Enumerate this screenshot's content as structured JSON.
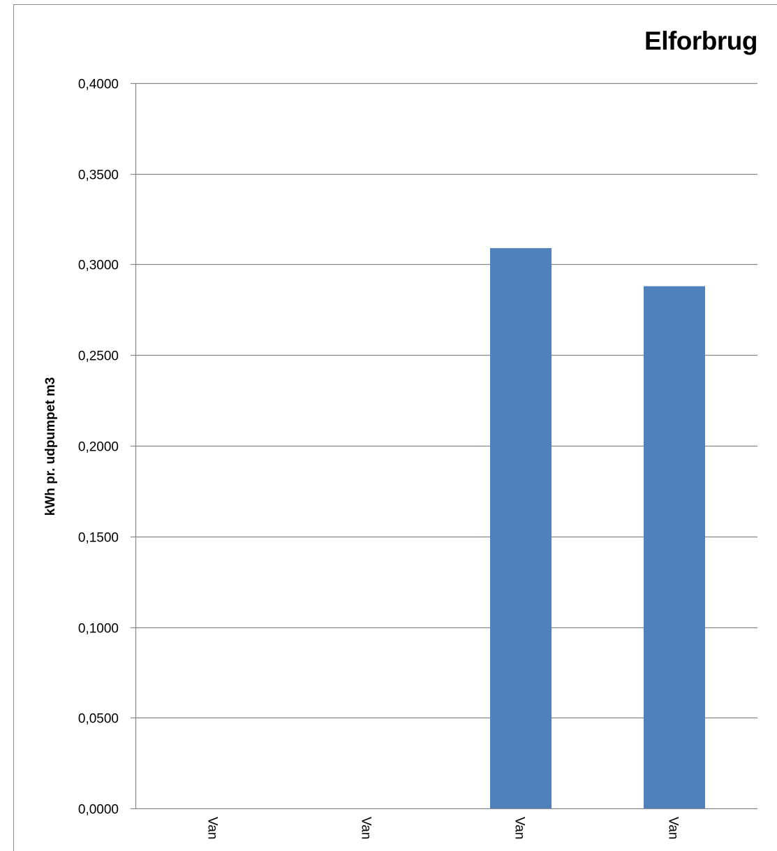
{
  "chart_data": {
    "type": "bar",
    "title": "Elforbrug",
    "xlabel": "",
    "ylabel": "kWh pr. udpumpet m3",
    "categories": [
      "Van",
      "Van",
      "Van",
      "Van"
    ],
    "values": [
      0,
      0,
      0.309,
      0.288
    ],
    "ylim": [
      0,
      0.4
    ],
    "yticks": [
      "0,0000",
      "0,0500",
      "0,1000",
      "0,1500",
      "0,2000",
      "0,2500",
      "0,3000",
      "0,3500",
      "0,4000"
    ],
    "grid": true,
    "legend": "none",
    "colors": {
      "bar": "#4f81bd",
      "grid": "#868686",
      "text": "#000000"
    }
  }
}
